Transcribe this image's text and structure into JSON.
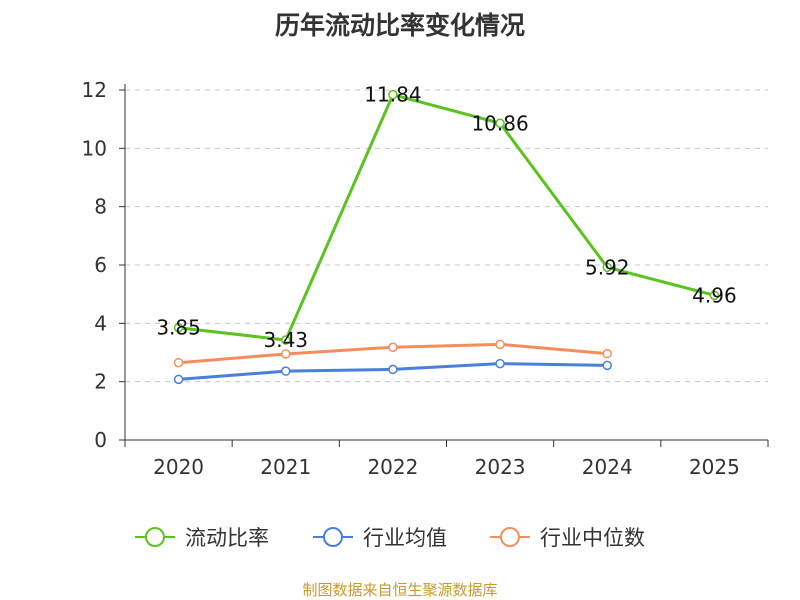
{
  "chart_data": {
    "type": "line",
    "title": "历年流动比率变化情况",
    "categories": [
      "2020",
      "2021",
      "2022",
      "2023",
      "2024",
      "2025"
    ],
    "ylim": [
      0,
      12
    ],
    "yticks": [
      0,
      2,
      4,
      6,
      8,
      10,
      12
    ],
    "grid": true,
    "legend_position": "bottom",
    "series": [
      {
        "name": "流动比率",
        "color": "#5cc21f",
        "values": [
          3.85,
          3.43,
          11.84,
          10.86,
          5.92,
          4.96
        ],
        "labels": [
          "3.85",
          "3.43",
          "11.84",
          "10.86",
          "5.92",
          "4.96"
        ]
      },
      {
        "name": "行业均值",
        "color": "#4a7fdc",
        "values": [
          2.08,
          2.36,
          2.42,
          2.62,
          2.56,
          null
        ]
      },
      {
        "name": "行业中位数",
        "color": "#f68d5c",
        "values": [
          2.65,
          2.95,
          3.18,
          3.28,
          2.96,
          null
        ]
      }
    ]
  },
  "footer": {
    "source": "制图数据来自恒生聚源数据库"
  }
}
